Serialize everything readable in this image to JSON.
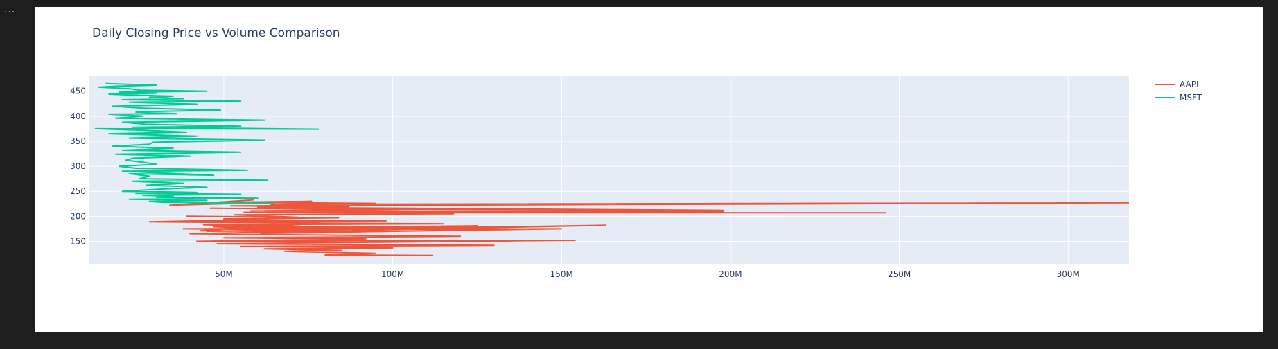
{
  "ui": {
    "menu_glyph": "..."
  },
  "chart_data": {
    "type": "line",
    "title": "Daily Closing Price vs Volume Comparison",
    "xlabel": "",
    "ylabel": "",
    "xlim": [
      10000000,
      318000000
    ],
    "ylim": [
      105,
      480
    ],
    "x_ticks": [
      50000000,
      100000000,
      150000000,
      200000000,
      250000000,
      300000000
    ],
    "x_tick_labels": [
      "50M",
      "100M",
      "150M",
      "200M",
      "250M",
      "300M"
    ],
    "y_ticks": [
      150,
      200,
      250,
      300,
      350,
      400,
      450
    ],
    "y_tick_labels": [
      "150",
      "200",
      "250",
      "300",
      "350",
      "400",
      "450"
    ],
    "grid": true,
    "legend": "top-right",
    "colors": {
      "AAPL": "#ef553b",
      "MSFT": "#00cc96",
      "plot_bg": "#e5ecf6",
      "text": "#2a3f5f"
    },
    "series": [
      {
        "name": "AAPL",
        "color": "#ef553b",
        "x": [
          112000000,
          80000000,
          95000000,
          68000000,
          85000000,
          62000000,
          100000000,
          55000000,
          130000000,
          48000000,
          154000000,
          42000000,
          92000000,
          50000000,
          120000000,
          40000000,
          163000000,
          45000000,
          88000000,
          38000000,
          105000000,
          52000000,
          70000000,
          44000000,
          115000000,
          60000000,
          78000000,
          36000000,
          98000000,
          58000000,
          28000000,
          82000000,
          47000000,
          66000000,
          125000000,
          54000000,
          74000000,
          43000000,
          91000000,
          61000000,
          150000000,
          57000000,
          69000000,
          50000000,
          84000000,
          39000000,
          72000000,
          53000000,
          118000000,
          63000000,
          246000000,
          56000000,
          198000000,
          58000000,
          102000000,
          46000000,
          198000000,
          60000000,
          87000000,
          52000000,
          318000000,
          64000000,
          95000000,
          49000000,
          76000000,
          34000000,
          59000000
        ],
        "y": [
          122,
          123,
          126,
          130,
          132,
          135,
          137,
          140,
          142,
          145,
          152,
          150,
          155,
          157,
          160,
          165,
          182,
          170,
          172,
          175,
          177,
          180,
          178,
          183,
          185,
          187,
          188,
          190,
          191,
          193,
          189,
          186,
          179,
          174,
          181,
          176,
          184,
          171,
          168,
          166,
          175,
          173,
          192,
          195,
          197,
          200,
          198,
          203,
          205,
          207,
          207,
          208,
          210,
          211,
          214,
          216,
          212,
          218,
          219,
          221,
          227,
          224,
          226,
          228,
          230,
          222,
          233
        ]
      },
      {
        "name": "MSFT",
        "color": "#00cc96",
        "x": [
          65000000,
          32000000,
          28000000,
          45000000,
          22000000,
          60000000,
          30000000,
          35000000,
          26000000,
          55000000,
          24000000,
          42000000,
          20000000,
          33000000,
          45000000,
          27000000,
          38000000,
          23000000,
          63000000,
          25000000,
          28000000,
          22000000,
          47000000,
          20000000,
          57000000,
          24000000,
          19000000,
          30000000,
          26000000,
          21000000,
          23000000,
          40000000,
          18000000,
          55000000,
          20000000,
          35000000,
          17000000,
          28000000,
          29000000,
          62000000,
          22000000,
          42000000,
          16000000,
          39000000,
          25000000,
          12000000,
          78000000,
          23000000,
          55000000,
          27000000,
          20000000,
          62000000,
          18000000,
          26000000,
          16000000,
          36000000,
          24000000,
          33000000,
          49000000,
          26000000,
          17000000,
          42000000,
          22000000,
          55000000,
          20000000,
          38000000,
          28000000,
          35000000,
          24000000,
          16000000,
          30000000,
          19000000,
          45000000,
          25000000,
          22000000,
          13000000,
          18000000,
          30000000,
          15000000
        ],
        "y": [
          226,
          228,
          230,
          232,
          234,
          236,
          238,
          240,
          242,
          244,
          246,
          248,
          250,
          255,
          258,
          262,
          266,
          270,
          272,
          275,
          280,
          285,
          282,
          290,
          292,
          296,
          300,
          304,
          308,
          312,
          316,
          320,
          324,
          328,
          332,
          336,
          340,
          344,
          348,
          352,
          356,
          360,
          365,
          368,
          372,
          375,
          374,
          378,
          380,
          384,
          388,
          392,
          396,
          400,
          404,
          405,
          408,
          410,
          412,
          416,
          420,
          424,
          428,
          430,
          433,
          435,
          438,
          440,
          442,
          444,
          446,
          448,
          450,
          452,
          455,
          458,
          460,
          462,
          465
        ]
      }
    ]
  }
}
